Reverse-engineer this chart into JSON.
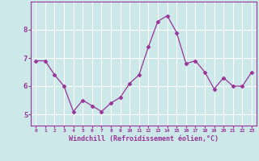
{
  "x": [
    0,
    1,
    2,
    3,
    4,
    5,
    6,
    7,
    8,
    9,
    10,
    11,
    12,
    13,
    14,
    15,
    16,
    17,
    18,
    19,
    20,
    21,
    22,
    23
  ],
  "y": [
    6.9,
    6.9,
    6.4,
    6.0,
    5.1,
    5.5,
    5.3,
    5.1,
    5.4,
    5.6,
    6.1,
    6.4,
    7.4,
    8.3,
    8.5,
    7.9,
    6.8,
    6.9,
    6.5,
    5.9,
    6.3,
    6.0,
    6.0,
    6.5
  ],
  "line_color": "#993399",
  "marker": "D",
  "marker_size": 2.5,
  "bg_color": "#cce8e8",
  "grid_color": "#ffffff",
  "xlabel": "Windchill (Refroidissement éolien,°C)",
  "xlabel_color": "#993399",
  "tick_color": "#993399",
  "ylabel_ticks": [
    5,
    6,
    7,
    8
  ],
  "xlim": [
    -0.5,
    23.5
  ],
  "ylim": [
    4.6,
    9.0
  ],
  "xtick_labels": [
    "0",
    "1",
    "2",
    "3",
    "4",
    "5",
    "6",
    "7",
    "8",
    "9",
    "10",
    "11",
    "12",
    "13",
    "14",
    "15",
    "16",
    "17",
    "18",
    "19",
    "20",
    "21",
    "22",
    "23"
  ]
}
